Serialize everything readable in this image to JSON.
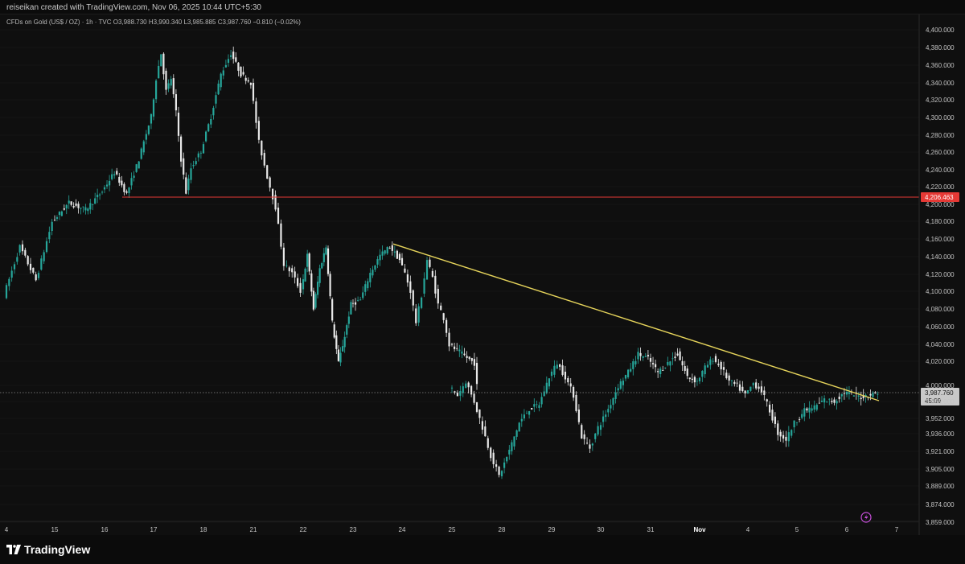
{
  "header": {
    "text": "reiseikan created with TradingView.com, Nov 06, 2025 10:44 UTC+5:30"
  },
  "legend": {
    "symbol": "CFDs on Gold (US$ / OZ) · 1h · TVC",
    "open": "O3,988.730",
    "high": "H3,990.340",
    "low": "L3,985.885",
    "close": "C3,987.760",
    "change": "−0.810 (−0.02%)"
  },
  "footer": {
    "brand": "TradingView"
  },
  "colors": {
    "up": "#26a69a",
    "down": "#e8e8e8",
    "horizontal_line": "#e53935",
    "trendline": "#e6d45b",
    "price_label_bg": "#c8c8c8"
  },
  "chart_data": {
    "type": "candlestick",
    "y_axis": {
      "ticks": [
        "4,400.000",
        "4,380.000",
        "4,360.000",
        "4,340.000",
        "4,320.000",
        "4,300.000",
        "4,280.000",
        "4,260.000",
        "4,240.000",
        "4,220.000",
        "4,200.000",
        "4,180.000",
        "4,160.000",
        "4,140.000",
        "4,120.000",
        "4,100.000",
        "4,080.000",
        "4,060.000",
        "4,040.000",
        "4,020.000",
        "4,000.000",
        "3,968.000",
        "3,952.000",
        "3,936.000",
        "3,921.000",
        "3,905.000",
        "3,889.000",
        "3,874.000",
        "3,859.000"
      ],
      "scale": "log"
    },
    "x_axis": {
      "labels": [
        "4",
        "15",
        "16",
        "17",
        "18",
        "21",
        "22",
        "23",
        "24",
        "25",
        "28",
        "29",
        "30",
        "31",
        "Nov",
        "4",
        "5",
        "6",
        "7"
      ],
      "bold_labels": [
        "Nov"
      ]
    },
    "horizontal_line": {
      "price": 4206.463,
      "label": "4,206.463",
      "start_date": "Oct 16"
    },
    "current_price": {
      "price": 3987.76,
      "label": "3,987.760",
      "countdown": "45:09"
    },
    "trendline": {
      "from": {
        "date": "Oct 23",
        "price": 4153
      },
      "to": {
        "date": "Nov 6",
        "price": 3979
      }
    },
    "price_path": [
      [
        "Oct 14",
        4095
      ],
      [
        "Oct 14",
        4150
      ],
      [
        "Oct 14",
        4112
      ],
      [
        "Oct 15",
        4178
      ],
      [
        "Oct 15",
        4200
      ],
      [
        "Oct 15",
        4192
      ],
      [
        "Oct 16",
        4213
      ],
      [
        "Oct 16",
        4235
      ],
      [
        "Oct 16",
        4210
      ],
      [
        "Oct 16",
        4250
      ],
      [
        "Oct 17",
        4300
      ],
      [
        "Oct 17",
        4345
      ],
      [
        "Oct 17",
        4375
      ],
      [
        "Oct 17",
        4330
      ],
      [
        "Oct 17",
        4345
      ],
      [
        "Oct 17",
        4305
      ],
      [
        "Oct 17",
        4250
      ],
      [
        "Oct 17",
        4212
      ],
      [
        "Oct 17",
        4240
      ],
      [
        "Oct 17",
        4250
      ],
      [
        "Oct 20",
        4260
      ],
      [
        "Oct 20",
        4300
      ],
      [
        "Oct 20",
        4350
      ],
      [
        "Oct 20",
        4375
      ],
      [
        "Oct 20",
        4350
      ],
      [
        "Oct 21",
        4340
      ],
      [
        "Oct 21",
        4270
      ],
      [
        "Oct 21",
        4230
      ],
      [
        "Oct 21",
        4195
      ],
      [
        "Oct 21",
        4130
      ],
      [
        "Oct 21",
        4120
      ],
      [
        "Oct 22",
        4100
      ],
      [
        "Oct 22",
        4140
      ],
      [
        "Oct 22",
        4080
      ],
      [
        "Oct 22",
        4125
      ],
      [
        "Oct 22",
        4150
      ],
      [
        "Oct 22",
        4065
      ],
      [
        "Oct 22",
        4020
      ],
      [
        "Oct 22",
        4050
      ],
      [
        "Oct 23",
        4085
      ],
      [
        "Oct 23",
        4090
      ],
      [
        "Oct 23",
        4120
      ],
      [
        "Oct 23",
        4140
      ],
      [
        "Oct 23",
        4150
      ],
      [
        "Oct 24",
        4135
      ],
      [
        "Oct 24",
        4120
      ],
      [
        "Oct 24",
        4100
      ],
      [
        "Oct 24",
        4065
      ],
      [
        "Oct 24",
        4095
      ],
      [
        "Oct 24",
        4135
      ],
      [
        "Oct 24",
        4115
      ],
      [
        "Oct 24",
        4085
      ],
      [
        "Oct 24",
        4070
      ],
      [
        "Oct 25",
        4040
      ],
      [
        "Oct 25",
        4020
      ],
      [
        "Oct 27",
        3995
      ],
      [
        "Oct 27",
        3985
      ],
      [
        "Oct 27",
        4000
      ],
      [
        "Oct 27",
        3978
      ],
      [
        "Oct 27",
        3950
      ],
      [
        "Oct 27",
        3920
      ],
      [
        "Oct 28",
        3898
      ],
      [
        "Oct 28",
        3925
      ],
      [
        "Oct 28",
        3955
      ],
      [
        "Oct 28",
        3970
      ],
      [
        "Oct 28",
        3975
      ],
      [
        "Oct 29",
        4005
      ],
      [
        "Oct 29",
        4020
      ],
      [
        "Oct 29",
        4005
      ],
      [
        "Oct 29",
        3985
      ],
      [
        "Oct 29",
        3940
      ],
      [
        "Oct 29",
        3928
      ],
      [
        "Oct 30",
        3950
      ],
      [
        "Oct 30",
        3970
      ],
      [
        "Oct 30",
        3995
      ],
      [
        "Oct 30",
        4010
      ],
      [
        "Oct 30",
        4030
      ],
      [
        "Oct 31",
        4025
      ],
      [
        "Oct 31",
        4010
      ],
      [
        "Oct 31",
        4020
      ],
      [
        "Oct 31",
        4030
      ],
      [
        "Oct 31",
        4005
      ],
      [
        "Nov 3",
        4000
      ],
      [
        "Nov 3",
        4015
      ],
      [
        "Nov 3",
        4025
      ],
      [
        "Nov 3",
        4015
      ],
      [
        "Nov 3",
        4000
      ],
      [
        "Nov 3",
        3995
      ],
      [
        "Nov 4",
        3985
      ],
      [
        "Nov 4",
        3998
      ],
      [
        "Nov 4",
        3990
      ],
      [
        "Nov 4",
        3968
      ],
      [
        "Nov 4",
        3944
      ],
      [
        "Nov 4",
        3937
      ],
      [
        "Nov 5",
        3955
      ],
      [
        "Nov 5",
        3968
      ],
      [
        "Nov 5",
        3972
      ],
      [
        "Nov 5",
        3980
      ],
      [
        "Nov 5",
        3978
      ],
      [
        "Nov 6",
        3988
      ],
      [
        "Nov 6",
        3983
      ],
      [
        "Nov 6",
        3987.76
      ]
    ]
  }
}
